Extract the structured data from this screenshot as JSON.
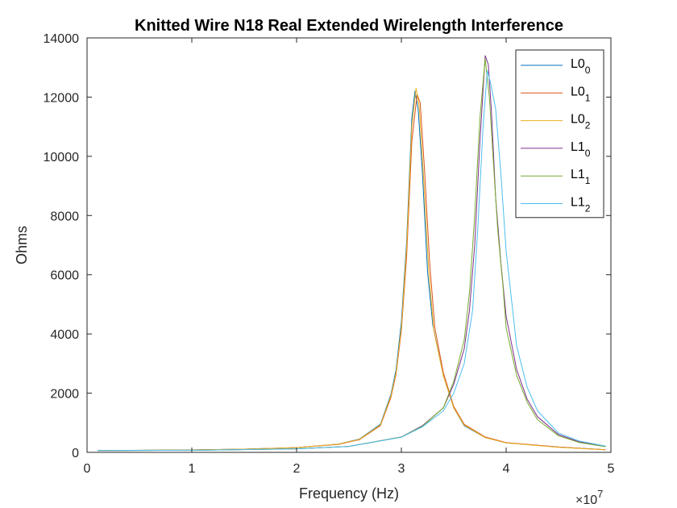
{
  "chart_data": {
    "type": "line",
    "title": "Knitted Wire N18 Real Extended Wirelength Interference",
    "xlabel": "Frequency (Hz)",
    "ylabel": "Ohms",
    "x_exponent_label": "×10",
    "x_exponent_power": "7",
    "xlim": [
      0,
      5
    ],
    "ylim": [
      0,
      14000
    ],
    "xticks": [
      0,
      1,
      2,
      3,
      4,
      5
    ],
    "xtick_labels": [
      "0",
      "1",
      "2",
      "3",
      "4",
      "5"
    ],
    "yticks": [
      0,
      2000,
      4000,
      6000,
      8000,
      10000,
      12000,
      14000
    ],
    "ytick_labels": [
      "0",
      "2000",
      "4000",
      "6000",
      "8000",
      "10000",
      "12000",
      "14000"
    ],
    "legend_placement": "top-right",
    "grid": false,
    "series": [
      {
        "name": "L0",
        "subscript": "0",
        "color": "#0072bd",
        "x": [
          0.1,
          1.0,
          1.5,
          2.0,
          2.4,
          2.6,
          2.8,
          2.9,
          2.95,
          3.0,
          3.05,
          3.1,
          3.13,
          3.16,
          3.2,
          3.25,
          3.3,
          3.4,
          3.5,
          3.6,
          3.8,
          4.0,
          4.5,
          4.95
        ],
        "y": [
          60,
          80,
          110,
          160,
          280,
          450,
          950,
          1950,
          2800,
          4400,
          7100,
          11300,
          12200,
          11600,
          9500,
          6100,
          4300,
          2600,
          1500,
          900,
          500,
          320,
          180,
          90
        ]
      },
      {
        "name": "L0",
        "subscript": "1",
        "color": "#d95319",
        "x": [
          0.1,
          1.0,
          1.5,
          2.0,
          2.4,
          2.6,
          2.8,
          2.9,
          2.95,
          3.0,
          3.05,
          3.1,
          3.15,
          3.18,
          3.22,
          3.27,
          3.32,
          3.4,
          3.5,
          3.6,
          3.8,
          4.0,
          4.5,
          4.95
        ],
        "y": [
          60,
          80,
          110,
          160,
          270,
          430,
          900,
          1850,
          2650,
          4100,
          6600,
          10500,
          12100,
          11800,
          9600,
          6400,
          4200,
          2700,
          1550,
          950,
          520,
          330,
          180,
          90
        ]
      },
      {
        "name": "L0",
        "subscript": "2",
        "color": "#edb120",
        "x": [
          0.1,
          1.0,
          1.5,
          2.0,
          2.4,
          2.6,
          2.8,
          2.9,
          2.95,
          3.0,
          3.05,
          3.1,
          3.14,
          3.17,
          3.21,
          3.26,
          3.31,
          3.4,
          3.5,
          3.6,
          3.8,
          4.0,
          4.5,
          4.95
        ],
        "y": [
          60,
          80,
          110,
          160,
          280,
          440,
          920,
          1900,
          2700,
          4200,
          6900,
          11000,
          12300,
          11700,
          9400,
          6200,
          4100,
          2600,
          1500,
          920,
          500,
          320,
          170,
          85
        ]
      },
      {
        "name": "L1",
        "subscript": "0",
        "color": "#7e2f8e",
        "x": [
          0.1,
          1.0,
          2.0,
          2.5,
          3.0,
          3.2,
          3.4,
          3.5,
          3.6,
          3.65,
          3.7,
          3.75,
          3.8,
          3.83,
          3.86,
          3.9,
          3.95,
          4.0,
          4.1,
          4.2,
          4.3,
          4.5,
          4.7,
          4.95
        ],
        "y": [
          60,
          70,
          120,
          200,
          520,
          900,
          1500,
          2300,
          3500,
          4800,
          7000,
          10500,
          13400,
          13100,
          11500,
          8600,
          6400,
          4600,
          2800,
          1800,
          1200,
          600,
          350,
          200
        ]
      },
      {
        "name": "L1",
        "subscript": "1",
        "color": "#77ac30",
        "x": [
          0.1,
          1.0,
          2.0,
          2.5,
          3.0,
          3.2,
          3.4,
          3.5,
          3.6,
          3.65,
          3.7,
          3.75,
          3.8,
          3.84,
          3.88,
          3.92,
          3.97,
          4.0,
          4.1,
          4.2,
          4.3,
          4.5,
          4.7,
          4.95
        ],
        "y": [
          60,
          70,
          120,
          200,
          520,
          880,
          1500,
          2400,
          3800,
          5400,
          8000,
          11300,
          13300,
          12000,
          9700,
          7500,
          5600,
          4200,
          2600,
          1700,
          1100,
          560,
          330,
          190
        ]
      },
      {
        "name": "L1",
        "subscript": "2",
        "color": "#4dbeee",
        "x": [
          0.1,
          1.0,
          2.0,
          2.5,
          3.0,
          3.2,
          3.4,
          3.5,
          3.6,
          3.68,
          3.73,
          3.78,
          3.82,
          3.85,
          3.9,
          3.95,
          4.0,
          4.1,
          4.2,
          4.3,
          4.5,
          4.7,
          4.95
        ],
        "y": [
          60,
          70,
          120,
          200,
          510,
          860,
          1400,
          2000,
          3000,
          4800,
          7600,
          11000,
          12900,
          12500,
          11600,
          9400,
          6800,
          3600,
          2200,
          1400,
          650,
          380,
          210
        ]
      }
    ]
  }
}
